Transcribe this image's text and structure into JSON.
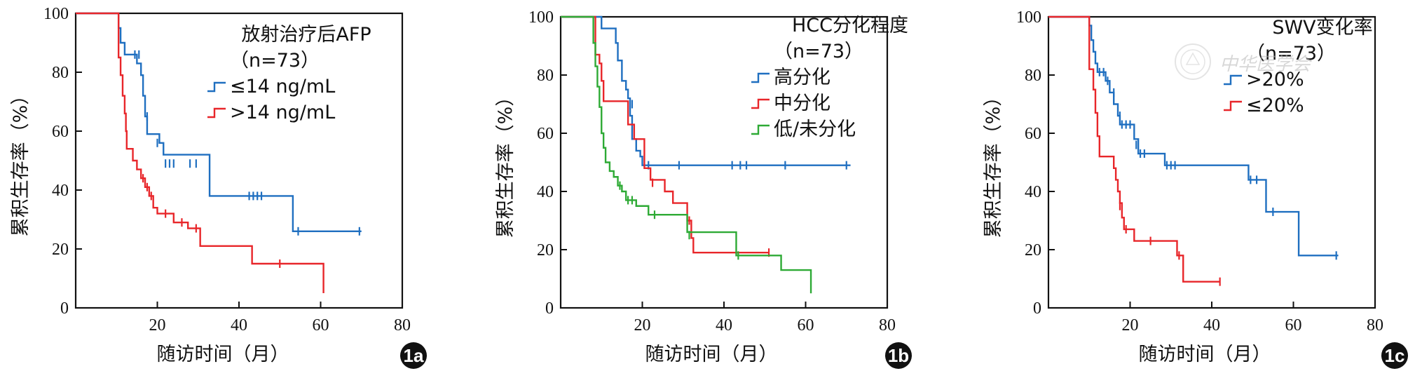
{
  "chart_data": [
    {
      "type": "line",
      "step": true,
      "panel_label": "1a",
      "ylabel": "累积生存率（%）",
      "xlabel": "随访时间（月）",
      "xlim": [
        0,
        80
      ],
      "ylim": [
        0,
        100
      ],
      "xticks": [
        20,
        40,
        60,
        80
      ],
      "yticks": [
        0,
        20,
        40,
        60,
        80,
        100
      ],
      "legend_title": [
        "放射治疗后AFP",
        "（n=73）"
      ],
      "grid": false,
      "legend_position": "top-right",
      "series": [
        {
          "name": "≤14 ng/mL",
          "color": "#1f6fc0",
          "points": [
            [
              0,
              100
            ],
            [
              9.5,
              100
            ],
            [
              10.5,
              95
            ],
            [
              11,
              90
            ],
            [
              12,
              86
            ],
            [
              14,
              86
            ],
            [
              15,
              83
            ],
            [
              16,
              79
            ],
            [
              16.5,
              72
            ],
            [
              17,
              65
            ],
            [
              17.5,
              59
            ],
            [
              19.5,
              59
            ],
            [
              20.5,
              56
            ],
            [
              21.5,
              52
            ],
            [
              32.5,
              52
            ],
            [
              32.8,
              38
            ],
            [
              53,
              38
            ],
            [
              53.2,
              26
            ],
            [
              70,
              26
            ]
          ],
          "censors": [
            [
              14.5,
              86
            ],
            [
              15.5,
              86
            ],
            [
              17.5,
              65
            ],
            [
              20,
              56
            ],
            [
              22,
              49
            ],
            [
              23,
              49
            ],
            [
              24,
              49
            ],
            [
              28,
              49
            ],
            [
              29.5,
              49
            ],
            [
              42.5,
              38
            ],
            [
              43.5,
              38
            ],
            [
              44.5,
              38
            ],
            [
              45.5,
              38
            ],
            [
              54.5,
              26
            ],
            [
              69.5,
              26
            ]
          ]
        },
        {
          "name": ">14 ng/mL",
          "color": "#e8262a",
          "points": [
            [
              0,
              100
            ],
            [
              10,
              100
            ],
            [
              10.5,
              85
            ],
            [
              11,
              79
            ],
            [
              11.5,
              72
            ],
            [
              12,
              66
            ],
            [
              12.3,
              60
            ],
            [
              12.5,
              54
            ],
            [
              13.5,
              54
            ],
            [
              14,
              50
            ],
            [
              15,
              47
            ],
            [
              16,
              44
            ],
            [
              17,
              41
            ],
            [
              18,
              38
            ],
            [
              19,
              34
            ],
            [
              20,
              32
            ],
            [
              23.5,
              32
            ],
            [
              24,
              29
            ],
            [
              27,
              29
            ],
            [
              27.5,
              27
            ],
            [
              30,
              27
            ],
            [
              30.5,
              21
            ],
            [
              43,
              21
            ],
            [
              43.2,
              15
            ],
            [
              60.5,
              15
            ],
            [
              60.7,
              5
            ]
          ],
          "censors": [
            [
              16.5,
              44
            ],
            [
              17.5,
              41
            ],
            [
              18.5,
              38
            ],
            [
              22,
              32
            ],
            [
              26,
              29
            ],
            [
              29.5,
              27
            ],
            [
              50,
              15
            ]
          ]
        }
      ]
    },
    {
      "type": "line",
      "step": true,
      "panel_label": "1b",
      "ylabel": "累积生存率（%）",
      "xlabel": "随访时间（月）",
      "xlim": [
        0,
        80
      ],
      "ylim": [
        0,
        100
      ],
      "xticks": [
        20,
        40,
        60,
        80
      ],
      "yticks": [
        0,
        20,
        40,
        60,
        80,
        100
      ],
      "legend_title": [
        "HCC分化程度",
        "（n=73）"
      ],
      "grid": false,
      "legend_position": "top-right",
      "series": [
        {
          "name": "高分化",
          "color": "#1f6fc0",
          "points": [
            [
              0,
              100
            ],
            [
              9.5,
              100
            ],
            [
              10,
              96
            ],
            [
              13,
              96
            ],
            [
              13.5,
              91
            ],
            [
              14,
              85
            ],
            [
              15,
              78
            ],
            [
              16,
              75
            ],
            [
              16.5,
              72
            ],
            [
              17,
              66
            ],
            [
              17.5,
              58
            ],
            [
              18.5,
              54
            ],
            [
              19.5,
              52
            ],
            [
              20,
              49
            ],
            [
              71,
              49
            ]
          ],
          "censors": [
            [
              17.5,
              70
            ],
            [
              21.5,
              49
            ],
            [
              29,
              49
            ],
            [
              42,
              49
            ],
            [
              44,
              49
            ],
            [
              45.5,
              49
            ],
            [
              55,
              49
            ],
            [
              70,
              49
            ]
          ]
        },
        {
          "name": "中分化",
          "color": "#e8262a",
          "points": [
            [
              0,
              100
            ],
            [
              8,
              100
            ],
            [
              8.5,
              87
            ],
            [
              9.5,
              84
            ],
            [
              10,
              78
            ],
            [
              10.5,
              71
            ],
            [
              16,
              71
            ],
            [
              16.5,
              63
            ],
            [
              18,
              58
            ],
            [
              20,
              58
            ],
            [
              20.5,
              48
            ],
            [
              22,
              44
            ],
            [
              25,
              44
            ],
            [
              25.5,
              40
            ],
            [
              27.5,
              36
            ],
            [
              30.5,
              36
            ],
            [
              31,
              30
            ],
            [
              32,
              24
            ],
            [
              32.5,
              19
            ],
            [
              51,
              19
            ]
          ],
          "censors": [
            [
              22.5,
              43
            ],
            [
              31.5,
              30
            ],
            [
              51,
              19
            ]
          ]
        },
        {
          "name": "低/未分化",
          "color": "#2eaa35",
          "points": [
            [
              0,
              100
            ],
            [
              7.5,
              100
            ],
            [
              8,
              91
            ],
            [
              8.5,
              83
            ],
            [
              9,
              76
            ],
            [
              9.5,
              69
            ],
            [
              10,
              60
            ],
            [
              10.5,
              55
            ],
            [
              11,
              50
            ],
            [
              12,
              47
            ],
            [
              13,
              45
            ],
            [
              14,
              42
            ],
            [
              15,
              40
            ],
            [
              16,
              37
            ],
            [
              18,
              37
            ],
            [
              18.5,
              35
            ],
            [
              21,
              35
            ],
            [
              21.5,
              32
            ],
            [
              30.5,
              32
            ],
            [
              31,
              26
            ],
            [
              42.5,
              26
            ],
            [
              43,
              18
            ],
            [
              53.5,
              18
            ],
            [
              54,
              13
            ],
            [
              61,
              13
            ],
            [
              61.3,
              5
            ]
          ],
          "censors": [
            [
              14.5,
              42
            ],
            [
              16.5,
              37
            ],
            [
              17.5,
              37
            ],
            [
              23,
              32
            ],
            [
              31.5,
              25
            ],
            [
              43.5,
              18
            ]
          ]
        }
      ]
    },
    {
      "type": "line",
      "step": true,
      "panel_label": "1c",
      "ylabel": "累积生存率（%）",
      "xlabel": "随访时间（月）",
      "xlim": [
        0,
        80
      ],
      "ylim": [
        0,
        100
      ],
      "xticks": [
        20,
        40,
        60,
        80
      ],
      "yticks": [
        0,
        20,
        40,
        60,
        80,
        100
      ],
      "legend_title": [
        "SWV变化率",
        "（n=73）"
      ],
      "grid": false,
      "legend_position": "top-right",
      "series": [
        {
          "name": ">20%",
          "color": "#1f6fc0",
          "points": [
            [
              0,
              100
            ],
            [
              9.5,
              100
            ],
            [
              10,
              97
            ],
            [
              10.5,
              92
            ],
            [
              11,
              88
            ],
            [
              11.5,
              84
            ],
            [
              12,
              81
            ],
            [
              13.5,
              81
            ],
            [
              14,
              78
            ],
            [
              15,
              74
            ],
            [
              16,
              70
            ],
            [
              17,
              66
            ],
            [
              17.5,
              63
            ],
            [
              20.5,
              63
            ],
            [
              21,
              58
            ],
            [
              22,
              53
            ],
            [
              28,
              53
            ],
            [
              28.5,
              49
            ],
            [
              48.5,
              49
            ],
            [
              49,
              44
            ],
            [
              53,
              44
            ],
            [
              53.3,
              33
            ],
            [
              61,
              33
            ],
            [
              61.3,
              18
            ],
            [
              71,
              18
            ]
          ],
          "censors": [
            [
              12.5,
              81
            ],
            [
              13.5,
              81
            ],
            [
              14.5,
              78
            ],
            [
              16,
              74
            ],
            [
              17.5,
              66
            ],
            [
              18,
              63
            ],
            [
              19,
              63
            ],
            [
              20,
              63
            ],
            [
              21.5,
              56
            ],
            [
              22.5,
              53
            ],
            [
              23.5,
              53
            ],
            [
              29,
              49
            ],
            [
              30,
              49
            ],
            [
              31,
              49
            ],
            [
              49.5,
              44
            ],
            [
              51,
              44
            ],
            [
              55,
              33
            ],
            [
              70.5,
              18
            ]
          ]
        },
        {
          "name": "≤20%",
          "color": "#e8262a",
          "points": [
            [
              0,
              100
            ],
            [
              9.5,
              100
            ],
            [
              10,
              82
            ],
            [
              11,
              75
            ],
            [
              11.5,
              67
            ],
            [
              12,
              59
            ],
            [
              12.5,
              52
            ],
            [
              15.5,
              52
            ],
            [
              16,
              48
            ],
            [
              16.5,
              44
            ],
            [
              17,
              40
            ],
            [
              17.5,
              36
            ],
            [
              18,
              31
            ],
            [
              18.5,
              27
            ],
            [
              20.5,
              27
            ],
            [
              21,
              23
            ],
            [
              31,
              23
            ],
            [
              31.5,
              18
            ],
            [
              32.5,
              18
            ],
            [
              33,
              9
            ],
            [
              42,
              9
            ]
          ],
          "censors": [
            [
              17.5,
              35
            ],
            [
              19,
              27
            ],
            [
              25,
              23
            ],
            [
              32,
              18
            ],
            [
              42,
              9
            ]
          ]
        }
      ]
    }
  ],
  "watermark": {
    "text": "中华医学会"
  }
}
